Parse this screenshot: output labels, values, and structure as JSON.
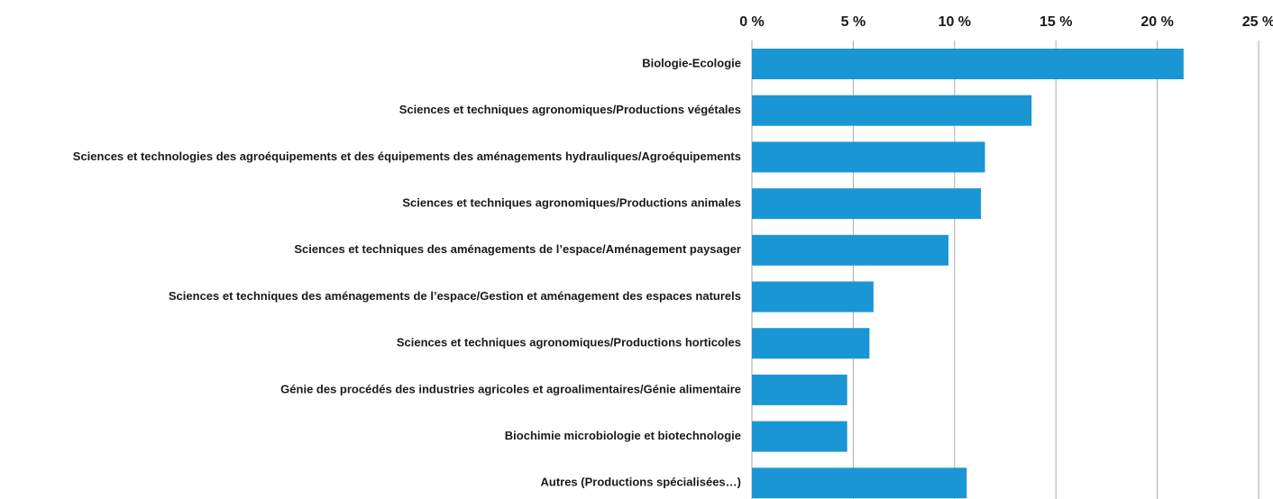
{
  "chart_data": {
    "type": "bar",
    "orientation": "horizontal",
    "categories": [
      "Biologie-Ecologie",
      "Sciences et techniques agronomiques/Productions végétales",
      "Sciences et technologies des agroéquipements et des équipements des aménagements hydrauliques/Agroéquipements",
      "Sciences et techniques agronomiques/Productions animales",
      "Sciences et techniques des aménagements de l’espace/Aménagement paysager",
      "Sciences et techniques des aménagements de l’espace/Gestion et aménagement des espaces naturels",
      "Sciences et techniques agronomiques/Productions horticoles",
      "Génie des procédés des industries agricoles et agroalimentaires/Génie alimentaire",
      "Biochimie microbiologie et biotechnologie",
      "Autres (Productions spécialisées…)"
    ],
    "values": [
      21.3,
      13.8,
      11.5,
      11.3,
      9.7,
      6.0,
      5.8,
      4.7,
      4.7,
      10.6
    ],
    "color": "#1a96d4",
    "xlim": [
      0,
      25
    ],
    "xticks": [
      {
        "value": 0,
        "label": "0 %"
      },
      {
        "value": 5,
        "label": "5 %"
      },
      {
        "value": 10,
        "label": "10 %"
      },
      {
        "value": 15,
        "label": "15 %"
      },
      {
        "value": 20,
        "label": "20 %"
      },
      {
        "value": 25,
        "label": "25 %"
      }
    ],
    "grid": true
  }
}
